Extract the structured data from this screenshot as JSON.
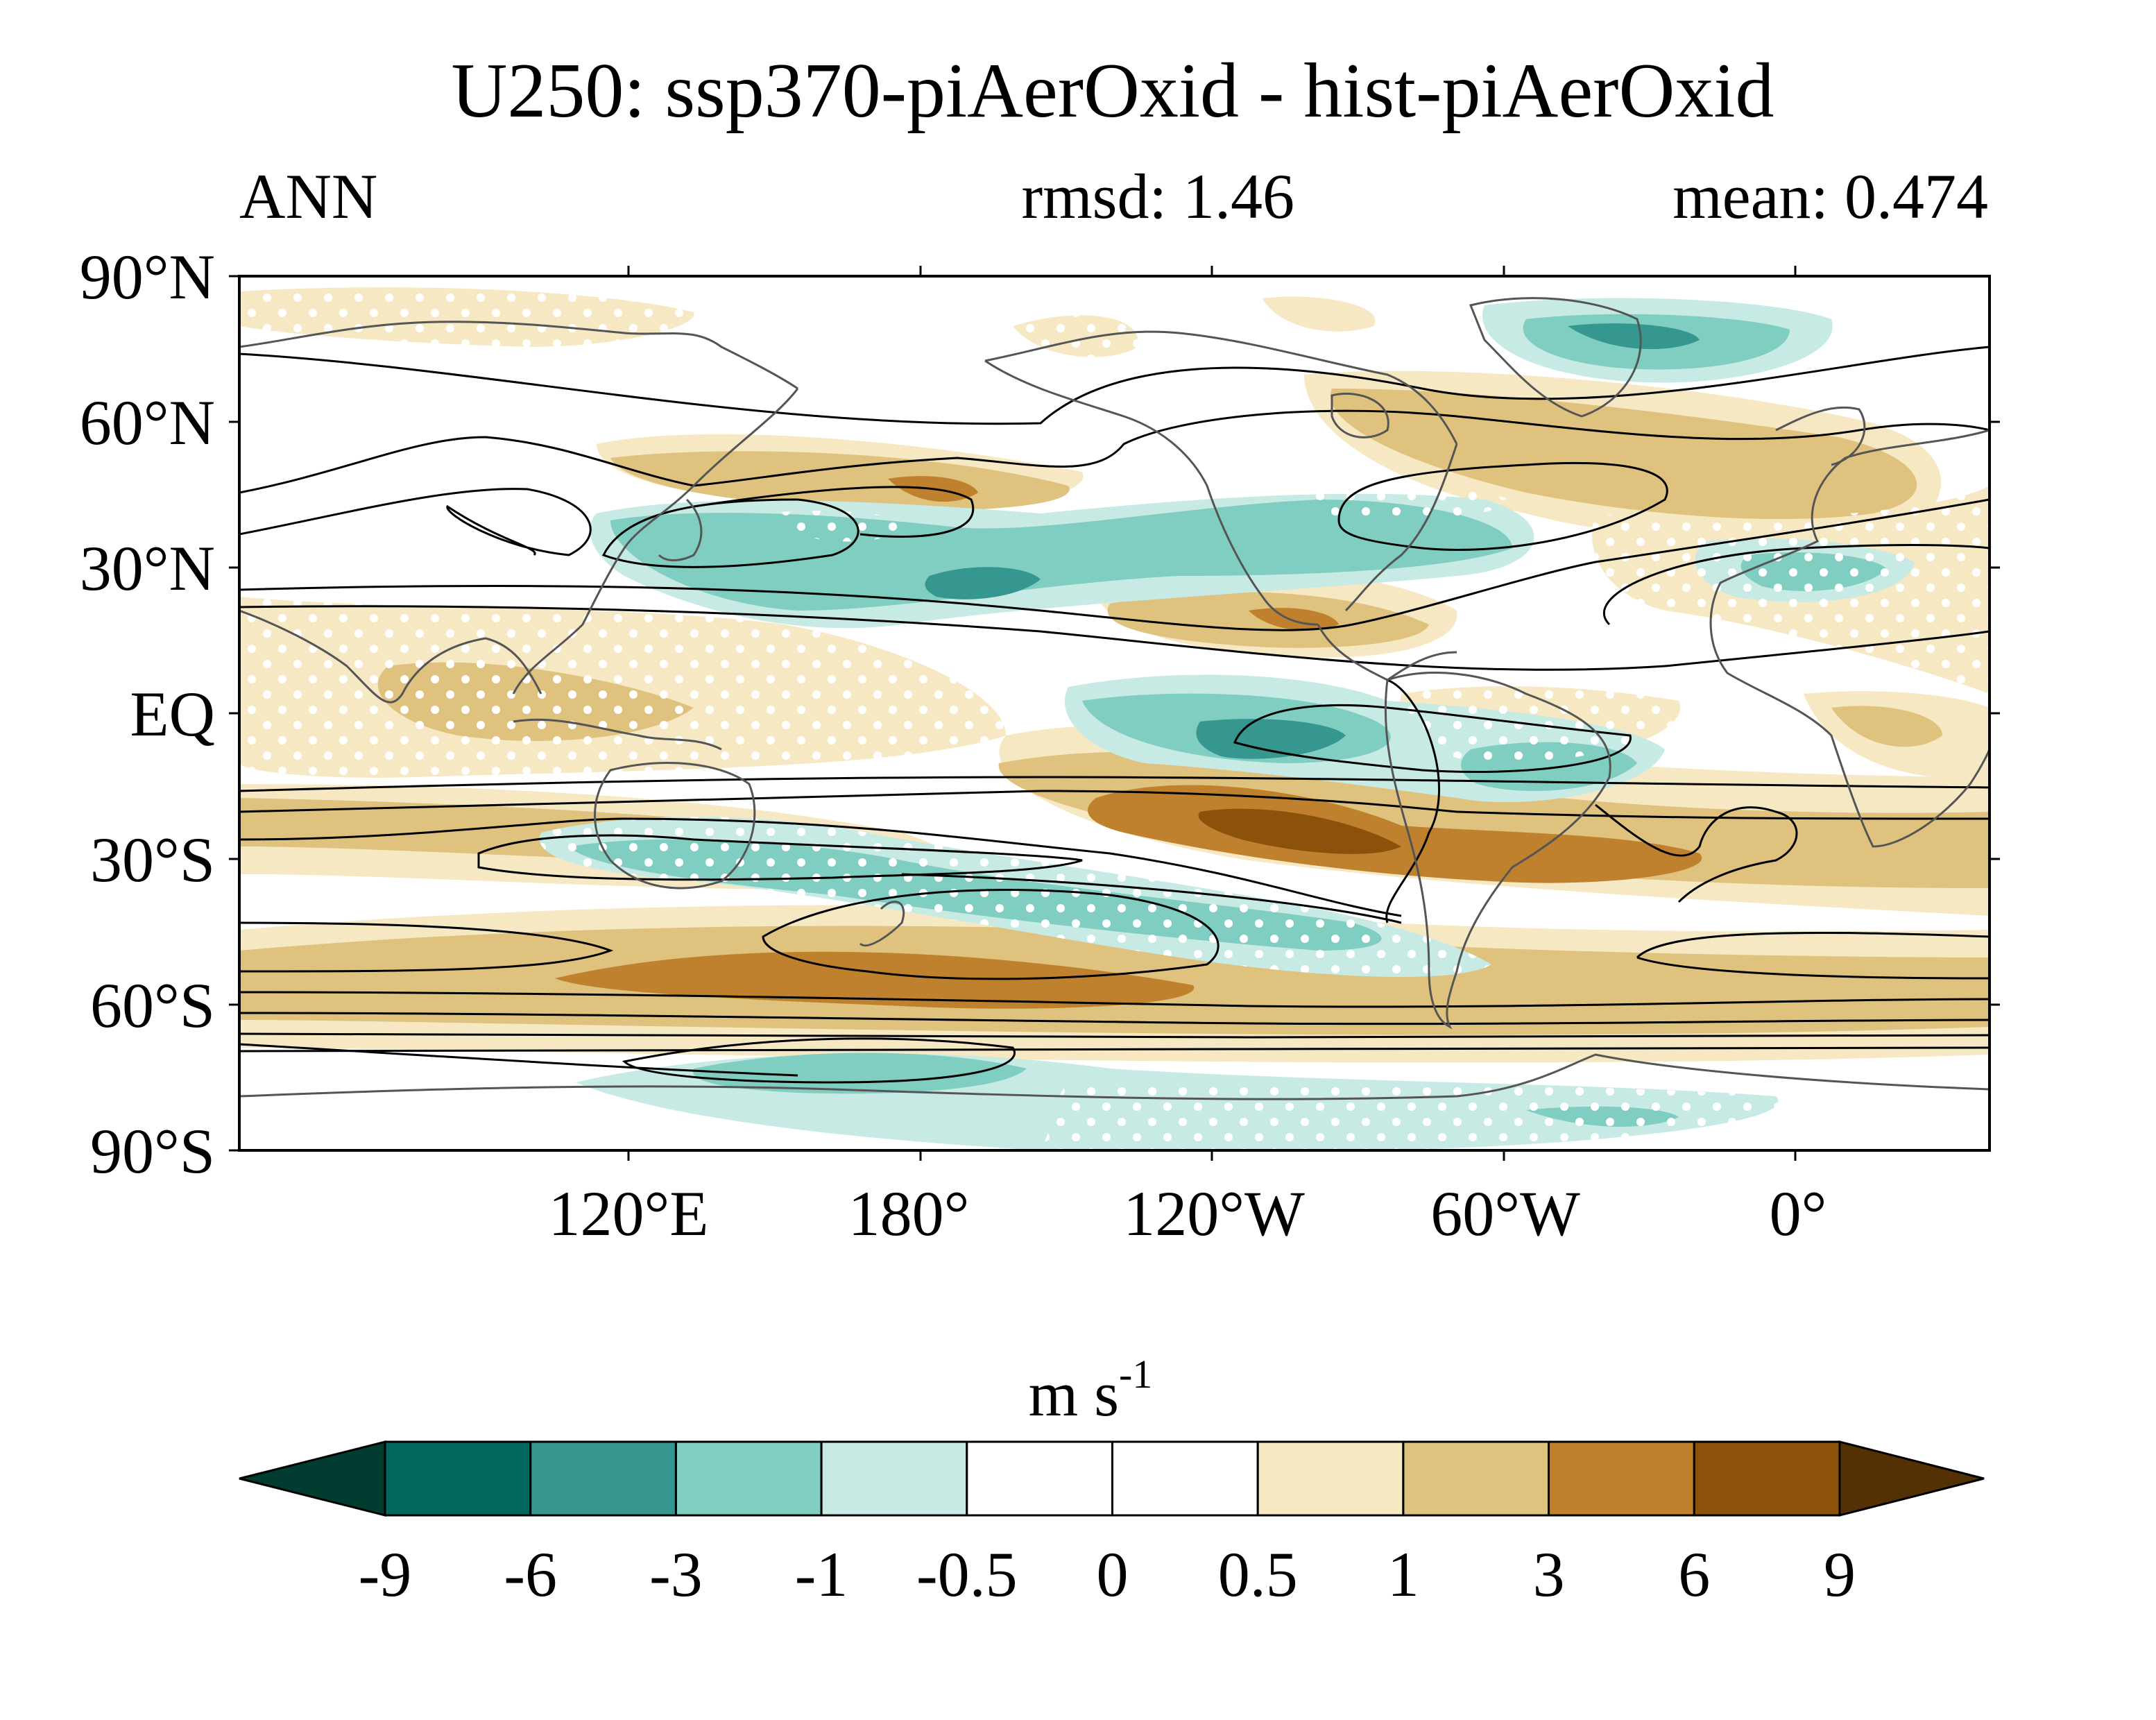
{
  "title": "U250: ssp370-piAerOxid - hist-piAerOxid",
  "season": "ANN",
  "rmsd_label": "rmsd: 1.46",
  "mean_label": "mean: 0.474",
  "units": {
    "base": "m s",
    "exponent": "-1"
  },
  "lat_labels": [
    "90°N",
    "60°N",
    "30°N",
    "EQ",
    "30°S",
    "60°S",
    "90°S"
  ],
  "lon_labels": [
    "120°E",
    "180°",
    "120°W",
    "60°W",
    "0°"
  ],
  "colorbar_labels": [
    "-9",
    "-6",
    "-3",
    "-1",
    "-0.5",
    "0",
    "0.5",
    "1",
    "3",
    "6",
    "9"
  ],
  "colorbar_colors": [
    "#003c30",
    "#01665e",
    "#35978f",
    "#80cdc1",
    "#c7eae5",
    "#ffffff",
    "#ffffff",
    "#f6e8c3",
    "#dfc27d",
    "#bf812d",
    "#8c510a",
    "#543005"
  ],
  "contour_color": "#000000",
  "coast_color": "#555555"
}
